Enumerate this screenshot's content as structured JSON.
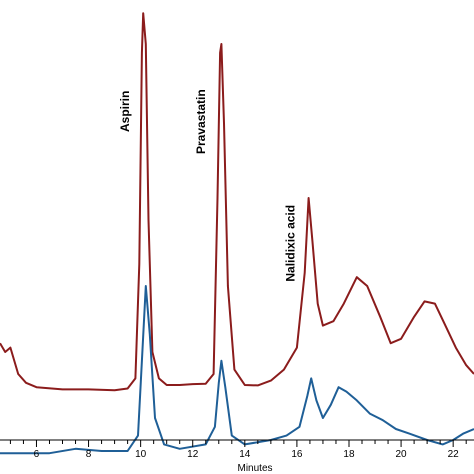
{
  "chart_data": {
    "type": "line",
    "title": "",
    "xlabel": "Minutes",
    "ylabel": "",
    "xlim": [
      4.6,
      22.8
    ],
    "xticks": [
      6,
      8,
      10,
      12,
      14,
      16,
      18,
      20,
      22
    ],
    "x_tick_labels": [
      "6",
      "8",
      "10",
      "12",
      "14",
      "16",
      "18",
      "20",
      "22"
    ],
    "grid": false,
    "legend": "none",
    "annotations": [
      {
        "text": "Aspirin",
        "x": 10.1
      },
      {
        "text": "Pravastatin",
        "x": 13.0
      },
      {
        "text": "Nalidixic acid",
        "x": 16.45
      }
    ],
    "series": [
      {
        "color": "#8b1c1c",
        "points": [
          [
            4.6,
            0.78
          ],
          [
            4.8,
            0.8
          ],
          [
            5.0,
            0.79
          ],
          [
            5.3,
            0.85
          ],
          [
            5.6,
            0.87
          ],
          [
            6.0,
            0.88
          ],
          [
            7.0,
            0.885
          ],
          [
            8.0,
            0.885
          ],
          [
            9.0,
            0.887
          ],
          [
            9.5,
            0.883
          ],
          [
            9.8,
            0.86
          ],
          [
            9.95,
            0.6
          ],
          [
            10.05,
            0.12
          ],
          [
            10.1,
            0.03
          ],
          [
            10.2,
            0.1
          ],
          [
            10.3,
            0.5
          ],
          [
            10.45,
            0.8
          ],
          [
            10.7,
            0.86
          ],
          [
            11.0,
            0.875
          ],
          [
            11.5,
            0.875
          ],
          [
            12.0,
            0.873
          ],
          [
            12.5,
            0.872
          ],
          [
            12.8,
            0.85
          ],
          [
            12.95,
            0.45
          ],
          [
            13.05,
            0.12
          ],
          [
            13.1,
            0.1
          ],
          [
            13.2,
            0.28
          ],
          [
            13.35,
            0.65
          ],
          [
            13.6,
            0.84
          ],
          [
            14.0,
            0.875
          ],
          [
            14.5,
            0.876
          ],
          [
            15.0,
            0.865
          ],
          [
            15.5,
            0.84
          ],
          [
            16.0,
            0.79
          ],
          [
            16.3,
            0.62
          ],
          [
            16.45,
            0.45
          ],
          [
            16.6,
            0.55
          ],
          [
            16.8,
            0.69
          ],
          [
            17.0,
            0.74
          ],
          [
            17.4,
            0.73
          ],
          [
            17.8,
            0.69
          ],
          [
            18.3,
            0.63
          ],
          [
            18.7,
            0.65
          ],
          [
            19.2,
            0.72
          ],
          [
            19.6,
            0.78
          ],
          [
            20.0,
            0.77
          ],
          [
            20.5,
            0.72
          ],
          [
            20.9,
            0.685
          ],
          [
            21.3,
            0.69
          ],
          [
            21.7,
            0.74
          ],
          [
            22.1,
            0.79
          ],
          [
            22.5,
            0.83
          ],
          [
            22.8,
            0.85
          ]
        ]
      },
      {
        "color": "#1f5f97",
        "points": [
          [
            4.6,
            1.03
          ],
          [
            5.5,
            1.03
          ],
          [
            6.5,
            1.03
          ],
          [
            7.5,
            1.02
          ],
          [
            8.5,
            1.025
          ],
          [
            9.5,
            1.025
          ],
          [
            9.9,
            0.99
          ],
          [
            10.05,
            0.82
          ],
          [
            10.2,
            0.65
          ],
          [
            10.35,
            0.76
          ],
          [
            10.55,
            0.95
          ],
          [
            10.9,
            1.01
          ],
          [
            11.5,
            1.02
          ],
          [
            12.5,
            1.01
          ],
          [
            12.85,
            0.97
          ],
          [
            13.0,
            0.87
          ],
          [
            13.1,
            0.82
          ],
          [
            13.25,
            0.88
          ],
          [
            13.5,
            0.99
          ],
          [
            14.0,
            1.01
          ],
          [
            15.0,
            1.0
          ],
          [
            15.6,
            0.99
          ],
          [
            16.1,
            0.97
          ],
          [
            16.4,
            0.9
          ],
          [
            16.55,
            0.86
          ],
          [
            16.75,
            0.91
          ],
          [
            17.0,
            0.95
          ],
          [
            17.3,
            0.92
          ],
          [
            17.6,
            0.88
          ],
          [
            17.9,
            0.89
          ],
          [
            18.3,
            0.91
          ],
          [
            18.8,
            0.94
          ],
          [
            19.3,
            0.955
          ],
          [
            19.8,
            0.975
          ],
          [
            20.3,
            0.985
          ],
          [
            21.0,
            1.0
          ],
          [
            21.6,
            1.01
          ],
          [
            22.0,
            1.0
          ],
          [
            22.4,
            0.985
          ],
          [
            22.8,
            0.975
          ]
        ]
      }
    ]
  }
}
